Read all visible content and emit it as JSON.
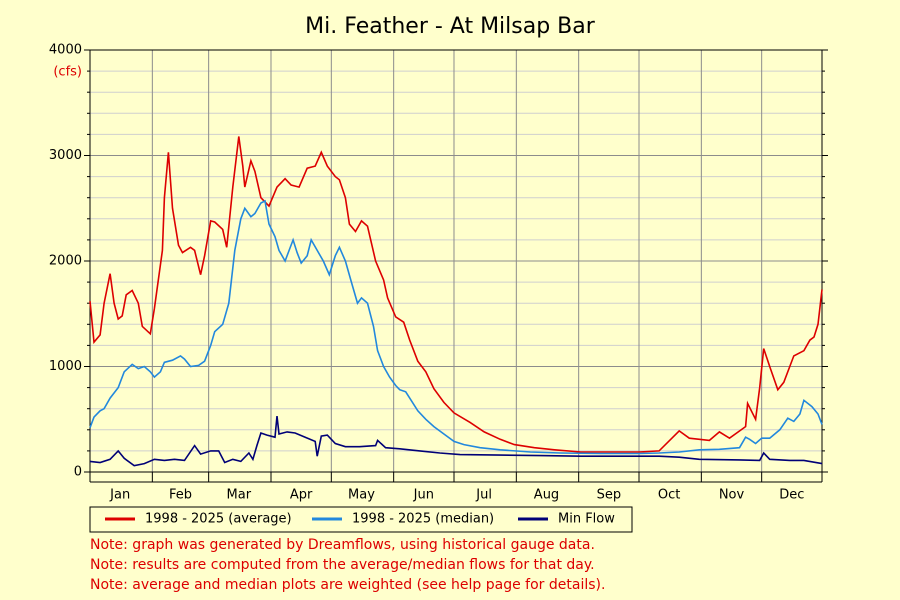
{
  "chart_data": {
    "type": "line",
    "title": "Mi. Feather - At Milsap Bar",
    "y_unit": "(cfs)",
    "xlim": [
      1,
      365
    ],
    "xticks": [
      {
        "value": 16,
        "label": "Jan"
      },
      {
        "value": 46,
        "label": "Feb"
      },
      {
        "value": 75,
        "label": "Mar"
      },
      {
        "value": 106,
        "label": "Apr"
      },
      {
        "value": 136,
        "label": "May"
      },
      {
        "value": 167,
        "label": "Jun"
      },
      {
        "value": 197,
        "label": "Jul"
      },
      {
        "value": 228,
        "label": "Aug"
      },
      {
        "value": 259,
        "label": "Sep"
      },
      {
        "value": 289,
        "label": "Oct"
      },
      {
        "value": 320,
        "label": "Nov"
      },
      {
        "value": 350,
        "label": "Dec"
      }
    ],
    "xgrid": [
      1,
      32,
      60,
      91,
      121,
      152,
      182,
      213,
      244,
      274,
      305,
      335,
      365
    ],
    "ylim": [
      0,
      4000
    ],
    "yticks": [
      0,
      1000,
      2000,
      3000,
      4000
    ],
    "yminorticks": [
      200,
      400,
      600,
      800,
      1200,
      1400,
      1600,
      1800,
      2200,
      2400,
      2600,
      2800,
      3200,
      3400,
      3600,
      3800
    ],
    "grid": true,
    "series": [
      {
        "name": "1998 - 2025 (average)",
        "color": "#dd0000",
        "x": [
          1,
          3,
          6,
          8,
          11,
          13,
          15,
          17,
          19,
          22,
          25,
          27,
          31,
          33,
          37,
          38,
          40,
          42,
          45,
          47,
          51,
          53,
          56,
          58,
          61,
          63,
          67,
          69,
          72,
          75,
          77,
          78,
          81,
          83,
          86,
          90,
          94,
          98,
          101,
          105,
          109,
          113,
          116,
          119,
          123,
          125,
          128,
          130,
          133,
          136,
          139,
          143,
          147,
          149,
          153,
          157,
          160,
          164,
          168,
          172,
          177,
          182,
          190,
          197,
          205,
          212,
          222,
          232,
          245,
          259,
          274,
          284,
          294,
          299,
          309,
          314,
          319,
          327,
          328,
          332,
          334,
          336,
          339,
          343,
          346,
          351,
          356,
          359,
          361,
          363,
          365
        ],
        "values": [
          1620,
          1230,
          1300,
          1600,
          1880,
          1600,
          1450,
          1480,
          1680,
          1720,
          1600,
          1380,
          1310,
          1550,
          2100,
          2600,
          3030,
          2500,
          2150,
          2080,
          2130,
          2100,
          1870,
          2050,
          2380,
          2370,
          2300,
          2130,
          2700,
          3180,
          2900,
          2700,
          2950,
          2850,
          2600,
          2520,
          2700,
          2780,
          2720,
          2700,
          2880,
          2900,
          3030,
          2900,
          2800,
          2770,
          2600,
          2350,
          2280,
          2380,
          2330,
          2000,
          1820,
          1650,
          1470,
          1420,
          1250,
          1050,
          950,
          790,
          660,
          560,
          470,
          380,
          310,
          260,
          230,
          210,
          190,
          190,
          190,
          200,
          390,
          320,
          300,
          380,
          320,
          430,
          650,
          500,
          800,
          1170,
          1000,
          780,
          850,
          1100,
          1150,
          1250,
          1280,
          1400,
          1730
        ]
      },
      {
        "name": "1998 - 2025 (median)",
        "color": "#2288dd",
        "x": [
          1,
          3,
          6,
          8,
          11,
          15,
          18,
          22,
          25,
          28,
          31,
          33,
          36,
          38,
          42,
          46,
          48,
          51,
          55,
          58,
          61,
          63,
          67,
          70,
          73,
          76,
          78,
          81,
          83,
          86,
          88,
          90,
          93,
          95,
          98,
          100,
          102,
          104,
          106,
          109,
          111,
          114,
          117,
          120,
          123,
          125,
          128,
          131,
          134,
          136,
          139,
          142,
          144,
          147,
          150,
          153,
          155,
          158,
          160,
          164,
          168,
          172,
          177,
          182,
          187,
          195,
          205,
          220,
          235,
          255,
          274,
          284,
          294,
          304,
          314,
          324,
          327,
          329,
          332,
          335,
          339,
          344,
          348,
          351,
          354,
          356,
          360,
          363,
          365
        ],
        "values": [
          420,
          520,
          580,
          600,
          700,
          800,
          950,
          1020,
          980,
          1000,
          950,
          900,
          950,
          1040,
          1060,
          1100,
          1070,
          1000,
          1010,
          1050,
          1200,
          1330,
          1400,
          1600,
          2100,
          2400,
          2500,
          2420,
          2450,
          2550,
          2570,
          2350,
          2230,
          2100,
          2000,
          2100,
          2200,
          2080,
          1980,
          2050,
          2200,
          2100,
          2000,
          1870,
          2050,
          2130,
          2000,
          1800,
          1600,
          1650,
          1600,
          1380,
          1150,
          1000,
          900,
          820,
          780,
          760,
          700,
          580,
          500,
          430,
          360,
          290,
          260,
          230,
          210,
          190,
          180,
          175,
          175,
          180,
          190,
          210,
          215,
          230,
          330,
          310,
          270,
          320,
          320,
          400,
          510,
          480,
          550,
          680,
          620,
          550,
          450
        ]
      },
      {
        "name": "Min Flow",
        "color": "#000077",
        "x": [
          1,
          6,
          11,
          15,
          18,
          23,
          28,
          33,
          38,
          43,
          48,
          53,
          56,
          61,
          65,
          68,
          72,
          76,
          80,
          82,
          84,
          86,
          89,
          93,
          94,
          95,
          99,
          103,
          108,
          113,
          114,
          116,
          119,
          123,
          128,
          135,
          143,
          144,
          148,
          155,
          165,
          175,
          185,
          205,
          225,
          245,
          264,
          284,
          294,
          304,
          324,
          334,
          336,
          339,
          349,
          356,
          365
        ],
        "values": [
          100,
          90,
          120,
          200,
          130,
          60,
          80,
          120,
          110,
          120,
          110,
          250,
          170,
          200,
          200,
          90,
          120,
          100,
          180,
          120,
          250,
          370,
          350,
          330,
          530,
          360,
          380,
          370,
          330,
          290,
          150,
          340,
          350,
          270,
          240,
          240,
          250,
          300,
          230,
          220,
          200,
          180,
          165,
          160,
          155,
          150,
          150,
          150,
          140,
          120,
          115,
          110,
          180,
          120,
          110,
          110,
          80
        ]
      }
    ],
    "notes": [
      "Note: graph was generated by Dreamflows, using historical gauge data.",
      "Note: results are computed from the average/median flows for that day.",
      "Note: average and median plots are weighted (see help page for details)."
    ]
  }
}
